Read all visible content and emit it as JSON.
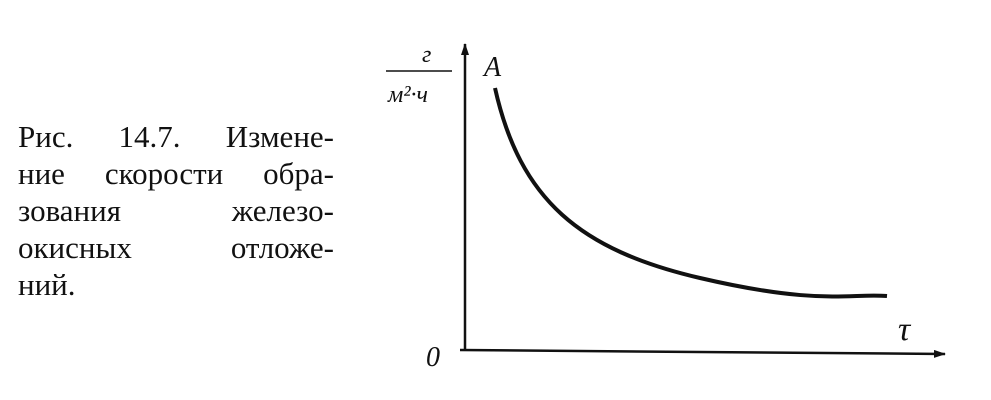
{
  "caption": {
    "lines": [
      "Рис. 14.7. Измене-",
      "ние скорости обра-",
      "зования железо-",
      "окисных отложе-",
      "ний."
    ]
  },
  "figure": {
    "y_axis_label": {
      "numerator": "г",
      "denominator": "м²·ч"
    },
    "curve_label": "A",
    "origin_label": "0",
    "x_axis_label": "τ"
  }
}
